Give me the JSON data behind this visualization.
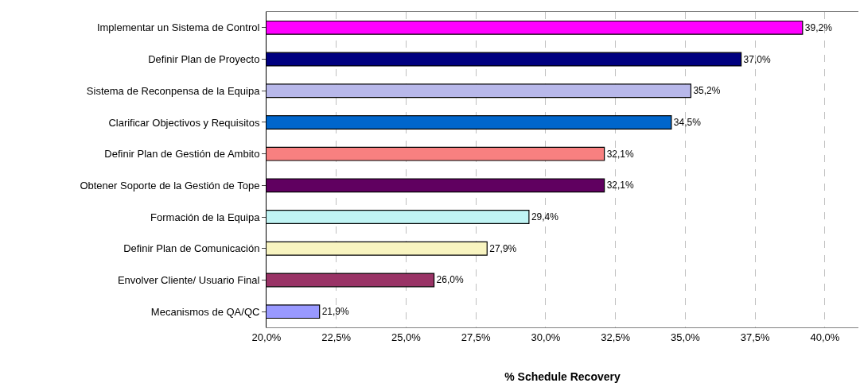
{
  "chart_data": {
    "type": "bar",
    "orientation": "horizontal",
    "xlabel": "% Schedule Recovery",
    "categories": [
      "Implementar un Sistema de Control",
      "Definir Plan de Proyecto",
      "Sistema de Reconpensa de la Equipa",
      "Clarificar Objectivos y Requisitos",
      "Definir Plan de Gestión de Ambito",
      "Obtener Soporte de la Gestión de Tope",
      "Formación de la Equipa",
      "Definir Plan de Comunicación",
      "Envolver Cliente/ Usuario Final",
      "Mecanismos de QA/QC"
    ],
    "values": [
      39.2,
      37.0,
      35.2,
      34.5,
      32.1,
      32.1,
      29.4,
      27.9,
      26.0,
      21.9
    ],
    "value_labels": [
      "39,2%",
      "37,0%",
      "35,2%",
      "34,5%",
      "32,1%",
      "32,1%",
      "29,4%",
      "27,9%",
      "26,0%",
      "21,9%"
    ],
    "colors": [
      "#ff00ff",
      "#000080",
      "#b8b8ea",
      "#0066cc",
      "#f88080",
      "#600060",
      "#c0f4f4",
      "#f8f4c0",
      "#993366",
      "#9999ff"
    ],
    "xlim": [
      20,
      41.2
    ],
    "xticks": [
      {
        "value": 20,
        "label": "20,0%"
      },
      {
        "value": 22.5,
        "label": "22,5%"
      },
      {
        "value": 25,
        "label": "25,0%"
      },
      {
        "value": 27.5,
        "label": "27,5%"
      },
      {
        "value": 30,
        "label": "30,0%"
      },
      {
        "value": 32.5,
        "label": "32,5%"
      },
      {
        "value": 35,
        "label": "35,0%"
      },
      {
        "value": 37.5,
        "label": "37,5%"
      },
      {
        "value": 40,
        "label": "40,0%"
      }
    ],
    "grid": "x",
    "legend": false
  }
}
